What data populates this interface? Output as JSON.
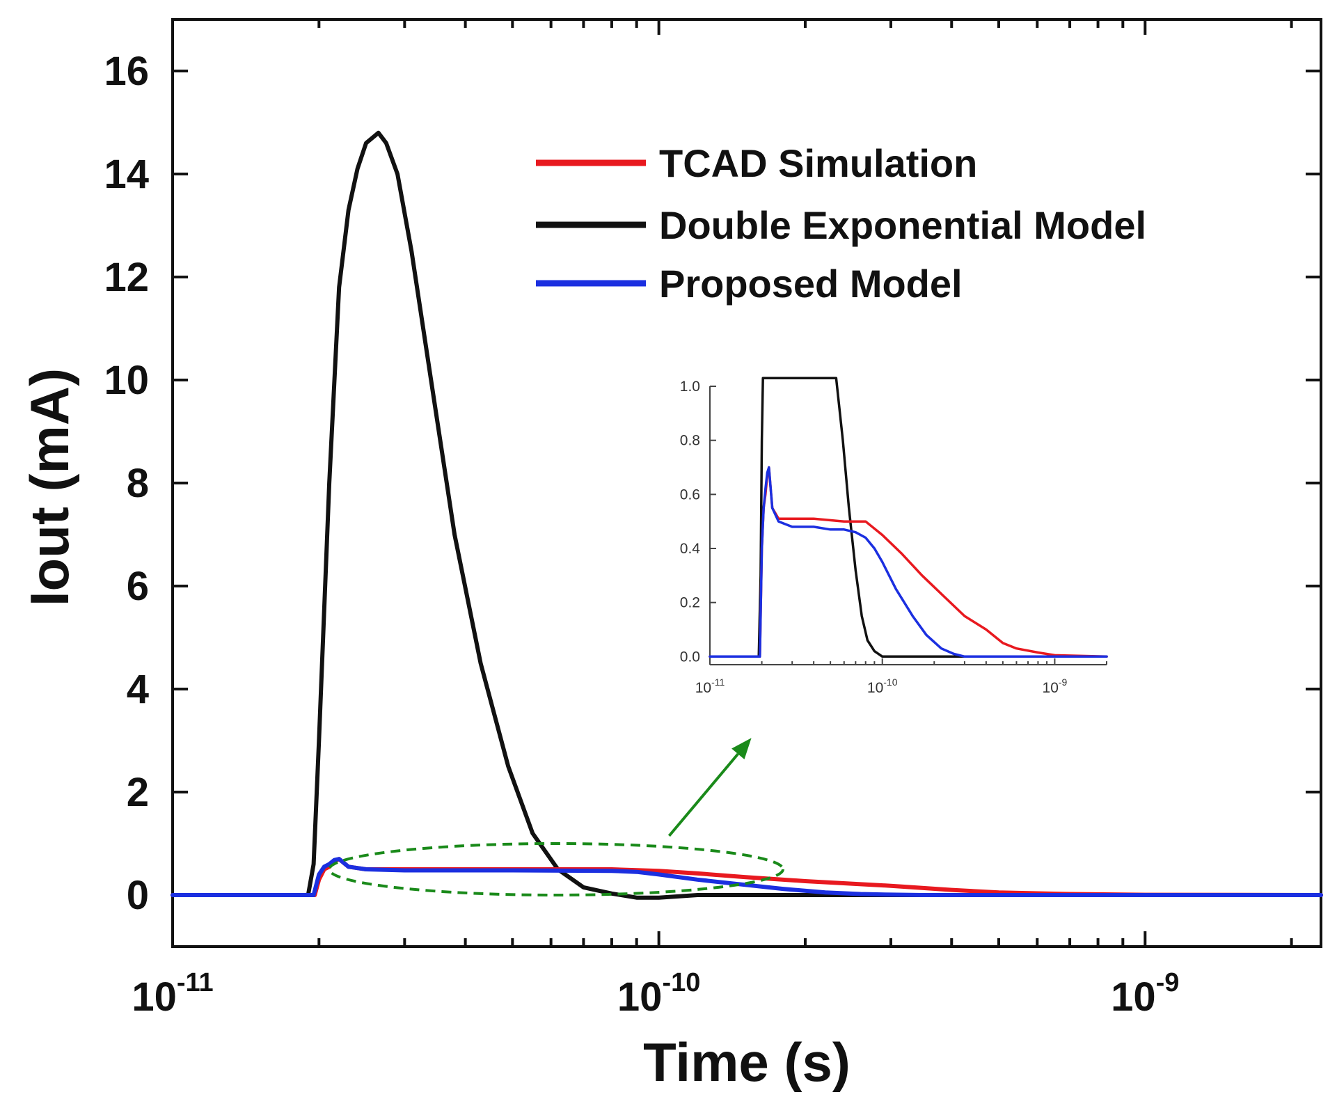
{
  "chart_data": {
    "type": "line",
    "main": {
      "title": "",
      "xlabel": "Time (s)",
      "ylabel": "Iout (mA)",
      "x_scale": "log",
      "xlim": [
        1e-11,
        2.3e-09
      ],
      "ylim": [
        -1,
        17
      ],
      "x_ticks": [
        {
          "value": 1e-11,
          "base": "10",
          "exp": "-11"
        },
        {
          "value": 1e-10,
          "base": "10",
          "exp": "-10"
        },
        {
          "value": 1e-09,
          "base": "10",
          "exp": "-9"
        }
      ],
      "y_ticks": [
        0,
        2,
        4,
        6,
        8,
        10,
        12,
        14,
        16
      ],
      "legend": {
        "position": "top-right",
        "entries": [
          {
            "label": "TCAD Simulation",
            "color": "#e8191f"
          },
          {
            "label": "Double Exponential Model",
            "color": "#111111"
          },
          {
            "label": "Proposed Model",
            "color": "#1b2fe0"
          }
        ]
      },
      "series": [
        {
          "name": "TCAD Simulation",
          "color": "#e8191f",
          "x": [
            1e-11,
            1.9e-11,
            1.96e-11,
            2e-11,
            2.05e-11,
            2.1e-11,
            2.15e-11,
            2.2e-11,
            2.3e-11,
            2.5e-11,
            3e-11,
            5e-11,
            8e-11,
            1e-10,
            1.2e-10,
            1.5e-10,
            2e-10,
            3e-10,
            4e-10,
            5e-10,
            7e-10,
            1e-09,
            2.3e-09
          ],
          "y": [
            0,
            0,
            0,
            0.3,
            0.5,
            0.55,
            0.65,
            0.7,
            0.55,
            0.5,
            0.5,
            0.5,
            0.5,
            0.47,
            0.42,
            0.35,
            0.27,
            0.18,
            0.1,
            0.05,
            0.02,
            0.005,
            0
          ]
        },
        {
          "name": "Double Exponential Model",
          "color": "#111111",
          "x": [
            1e-11,
            1.8e-11,
            1.9e-11,
            1.95e-11,
            2e-11,
            2.1e-11,
            2.2e-11,
            2.3e-11,
            2.4e-11,
            2.5e-11,
            2.65e-11,
            2.75e-11,
            2.9e-11,
            3.1e-11,
            3.4e-11,
            3.8e-11,
            4.3e-11,
            4.9e-11,
            5.5e-11,
            6.2e-11,
            7e-11,
            8e-11,
            9e-11,
            1e-10,
            1.2e-10,
            2.3e-09
          ],
          "y": [
            0,
            0,
            0,
            0.6,
            3,
            8,
            11.8,
            13.3,
            14.1,
            14.6,
            14.8,
            14.6,
            14,
            12.5,
            10,
            7,
            4.5,
            2.5,
            1.2,
            0.5,
            0.15,
            0.03,
            -0.05,
            -0.05,
            0,
            0
          ]
        },
        {
          "name": "Proposed Model",
          "color": "#1b2fe0",
          "x": [
            1e-11,
            1.9e-11,
            1.95e-11,
            2e-11,
            2.05e-11,
            2.1e-11,
            2.15e-11,
            2.2e-11,
            2.3e-11,
            2.5e-11,
            3e-11,
            5e-11,
            8e-11,
            9e-11,
            1e-10,
            1.2e-10,
            1.5e-10,
            1.8e-10,
            2.2e-10,
            2.6e-10,
            3e-10,
            3.5e-10,
            2.3e-09
          ],
          "y": [
            0,
            0,
            0,
            0.4,
            0.55,
            0.6,
            0.68,
            0.7,
            0.55,
            0.5,
            0.48,
            0.48,
            0.47,
            0.45,
            0.4,
            0.3,
            0.2,
            0.12,
            0.05,
            0.02,
            0.008,
            0,
            0
          ]
        }
      ],
      "annotations": [
        {
          "type": "ellipse",
          "style": "dashed",
          "color": "#1a8a1a",
          "x_range": [
            2.1e-11,
            1.8e-10
          ],
          "y_range": [
            0.0,
            1.0
          ]
        },
        {
          "type": "arrow",
          "color": "#1a8a1a",
          "from": {
            "x": 1.05e-10,
            "y": 1.15
          },
          "to": {
            "x": 1.55e-10,
            "y": 3.05
          }
        }
      ]
    },
    "inset": {
      "xlabel": "",
      "ylabel": "",
      "x_scale": "log",
      "xlim": [
        1e-11,
        2e-09
      ],
      "ylim": [
        -0.03,
        1.0
      ],
      "x_ticks": [
        {
          "value": 1e-11,
          "base": "10",
          "exp": "-11"
        },
        {
          "value": 1e-10,
          "base": "10",
          "exp": "-10"
        },
        {
          "value": 1e-09,
          "base": "10",
          "exp": "-9"
        }
      ],
      "y_ticks": [
        "0.0",
        "0.2",
        "0.4",
        "0.6",
        "0.8",
        "1.0"
      ],
      "series": [
        {
          "name": "TCAD Simulation",
          "color": "#e8191f",
          "x": [
            1e-11,
            1.95e-11,
            2e-11,
            2.05e-11,
            2.1e-11,
            2.15e-11,
            2.2e-11,
            2.3e-11,
            2.5e-11,
            3e-11,
            4e-11,
            6e-11,
            8e-11,
            1e-10,
            1.3e-10,
            1.7e-10,
            2.3e-10,
            3e-10,
            4e-10,
            5e-10,
            6e-10,
            8e-10,
            1e-09,
            2e-09
          ],
          "y": [
            0,
            0,
            0.4,
            0.55,
            0.6,
            0.67,
            0.7,
            0.55,
            0.51,
            0.51,
            0.51,
            0.5,
            0.5,
            0.45,
            0.38,
            0.3,
            0.22,
            0.15,
            0.1,
            0.05,
            0.03,
            0.015,
            0.005,
            0
          ]
        },
        {
          "name": "Double Exponential Model",
          "color": "#111111",
          "x": [
            1e-11,
            1.92e-11,
            1.97e-11,
            2e-11,
            2.03e-11,
            2.07e-11,
            5.4e-11,
            5.9e-11,
            6.4e-11,
            7e-11,
            7.6e-11,
            8.2e-11,
            9e-11,
            1e-10,
            1.2e-10,
            2e-09
          ],
          "y": [
            0,
            0,
            0.3,
            0.8,
            1.03,
            1.03,
            1.03,
            0.8,
            0.55,
            0.32,
            0.15,
            0.06,
            0.02,
            0,
            0,
            0
          ]
        },
        {
          "name": "Proposed Model",
          "color": "#1b2fe0",
          "x": [
            1e-11,
            1.95e-11,
            2e-11,
            2.05e-11,
            2.1e-11,
            2.15e-11,
            2.2e-11,
            2.3e-11,
            2.5e-11,
            3e-11,
            4e-11,
            5e-11,
            6e-11,
            7e-11,
            8e-11,
            9e-11,
            1e-10,
            1.2e-10,
            1.5e-10,
            1.8e-10,
            2.2e-10,
            2.6e-10,
            3e-10,
            2e-09
          ],
          "y": [
            0,
            0,
            0.4,
            0.55,
            0.62,
            0.68,
            0.7,
            0.55,
            0.5,
            0.48,
            0.48,
            0.47,
            0.47,
            0.46,
            0.44,
            0.4,
            0.35,
            0.25,
            0.15,
            0.08,
            0.03,
            0.01,
            0,
            0
          ]
        }
      ]
    }
  }
}
